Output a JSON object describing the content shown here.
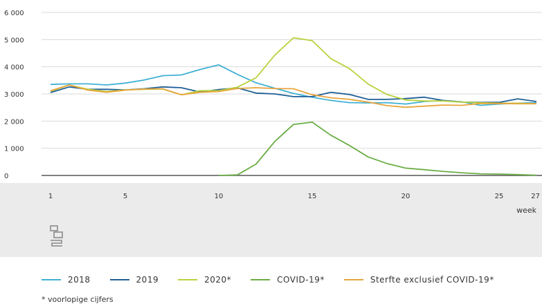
{
  "chart_data": {
    "type": "line",
    "xlabel": "week",
    "ylabel": "",
    "xlim": [
      1,
      27
    ],
    "ylim": [
      0,
      6000
    ],
    "x_ticks": [
      1,
      5,
      10,
      15,
      20,
      25,
      27
    ],
    "x_tick_labels": [
      "1",
      "5",
      "10",
      "15",
      "20",
      "25",
      "27"
    ],
    "y_ticks": [
      0,
      1000,
      2000,
      3000,
      4000,
      5000,
      6000
    ],
    "y_tick_labels": [
      "0",
      "1 000",
      "2 000",
      "3 000",
      "4 000",
      "5 000",
      "6 000"
    ],
    "grid": true,
    "legend_position": "bottom",
    "series": [
      {
        "name": "2018",
        "color": "#3fb0d4",
        "x": [
          1,
          2,
          3,
          4,
          5,
          6,
          7,
          8,
          9,
          10,
          11,
          12,
          13,
          14,
          15,
          16,
          17,
          18,
          19,
          20,
          21,
          22,
          23,
          24,
          25,
          26,
          27
        ],
        "values": [
          3350,
          3370,
          3370,
          3330,
          3400,
          3510,
          3670,
          3700,
          3900,
          4070,
          3720,
          3410,
          3210,
          3020,
          2880,
          2760,
          2680,
          2670,
          2680,
          2630,
          2720,
          2760,
          2710,
          2580,
          2630,
          2660,
          2680
        ]
      },
      {
        "name": "2019",
        "color": "#1f5f96",
        "x": [
          1,
          2,
          3,
          4,
          5,
          6,
          7,
          8,
          9,
          10,
          11,
          12,
          13,
          14,
          15,
          16,
          17,
          18,
          19,
          20,
          21,
          22,
          23,
          24,
          25,
          26,
          27
        ],
        "values": [
          3050,
          3260,
          3170,
          3170,
          3150,
          3190,
          3260,
          3230,
          3070,
          3160,
          3220,
          3030,
          3000,
          2900,
          2900,
          3060,
          2980,
          2800,
          2800,
          2830,
          2880,
          2760,
          2700,
          2690,
          2690,
          2820,
          2720
        ]
      },
      {
        "name": "2020*",
        "color": "#b9d23c",
        "x": [
          1,
          2,
          3,
          4,
          5,
          6,
          7,
          8,
          9,
          10,
          11,
          12,
          13,
          14,
          15,
          16,
          17,
          18,
          19,
          20,
          21,
          22,
          23,
          24,
          25,
          26,
          27
        ],
        "values": [
          3100,
          3330,
          3170,
          3090,
          3150,
          3170,
          3180,
          2970,
          3120,
          3120,
          3250,
          3600,
          4430,
          5070,
          4960,
          4300,
          3930,
          3360,
          2980,
          2780,
          2740,
          2740,
          2700,
          2680,
          2660,
          2660,
          2640
        ]
      },
      {
        "name": "COVID-19*",
        "color": "#6aad44",
        "x": [
          10,
          11,
          12,
          13,
          14,
          15,
          16,
          17,
          18,
          19,
          20,
          21,
          22,
          23,
          24,
          25,
          26,
          27
        ],
        "values": [
          0,
          20,
          420,
          1250,
          1880,
          1960,
          1480,
          1100,
          680,
          440,
          270,
          210,
          150,
          100,
          60,
          50,
          30,
          10
        ]
      },
      {
        "name": "Sterfte exclusief COVID-19*",
        "color": "#e8a43c",
        "x": [
          1,
          2,
          3,
          4,
          5,
          6,
          7,
          8,
          9,
          10,
          11,
          12,
          13,
          14,
          15,
          16,
          17,
          18,
          19,
          20,
          21,
          22,
          23,
          24,
          25,
          26,
          27
        ],
        "values": [
          3120,
          3330,
          3140,
          3060,
          3140,
          3180,
          3190,
          2970,
          3060,
          3090,
          3200,
          3230,
          3200,
          3190,
          2970,
          2860,
          2800,
          2700,
          2570,
          2510,
          2550,
          2590,
          2580,
          2650,
          2650,
          2640,
          2640
        ]
      }
    ],
    "footnote": "* voorlopige cijfers"
  },
  "legend": {
    "items": [
      {
        "label": "2018",
        "color": "#3fb0d4"
      },
      {
        "label": "2019",
        "color": "#1f5f96"
      },
      {
        "label": "2020*",
        "color": "#b9d23c"
      },
      {
        "label": "COVID-19*",
        "color": "#6aad44"
      },
      {
        "label": "Sterfte exclusief COVID-19*",
        "color": "#e8a43c"
      }
    ]
  },
  "logo_icon": "cbs-logo-icon"
}
